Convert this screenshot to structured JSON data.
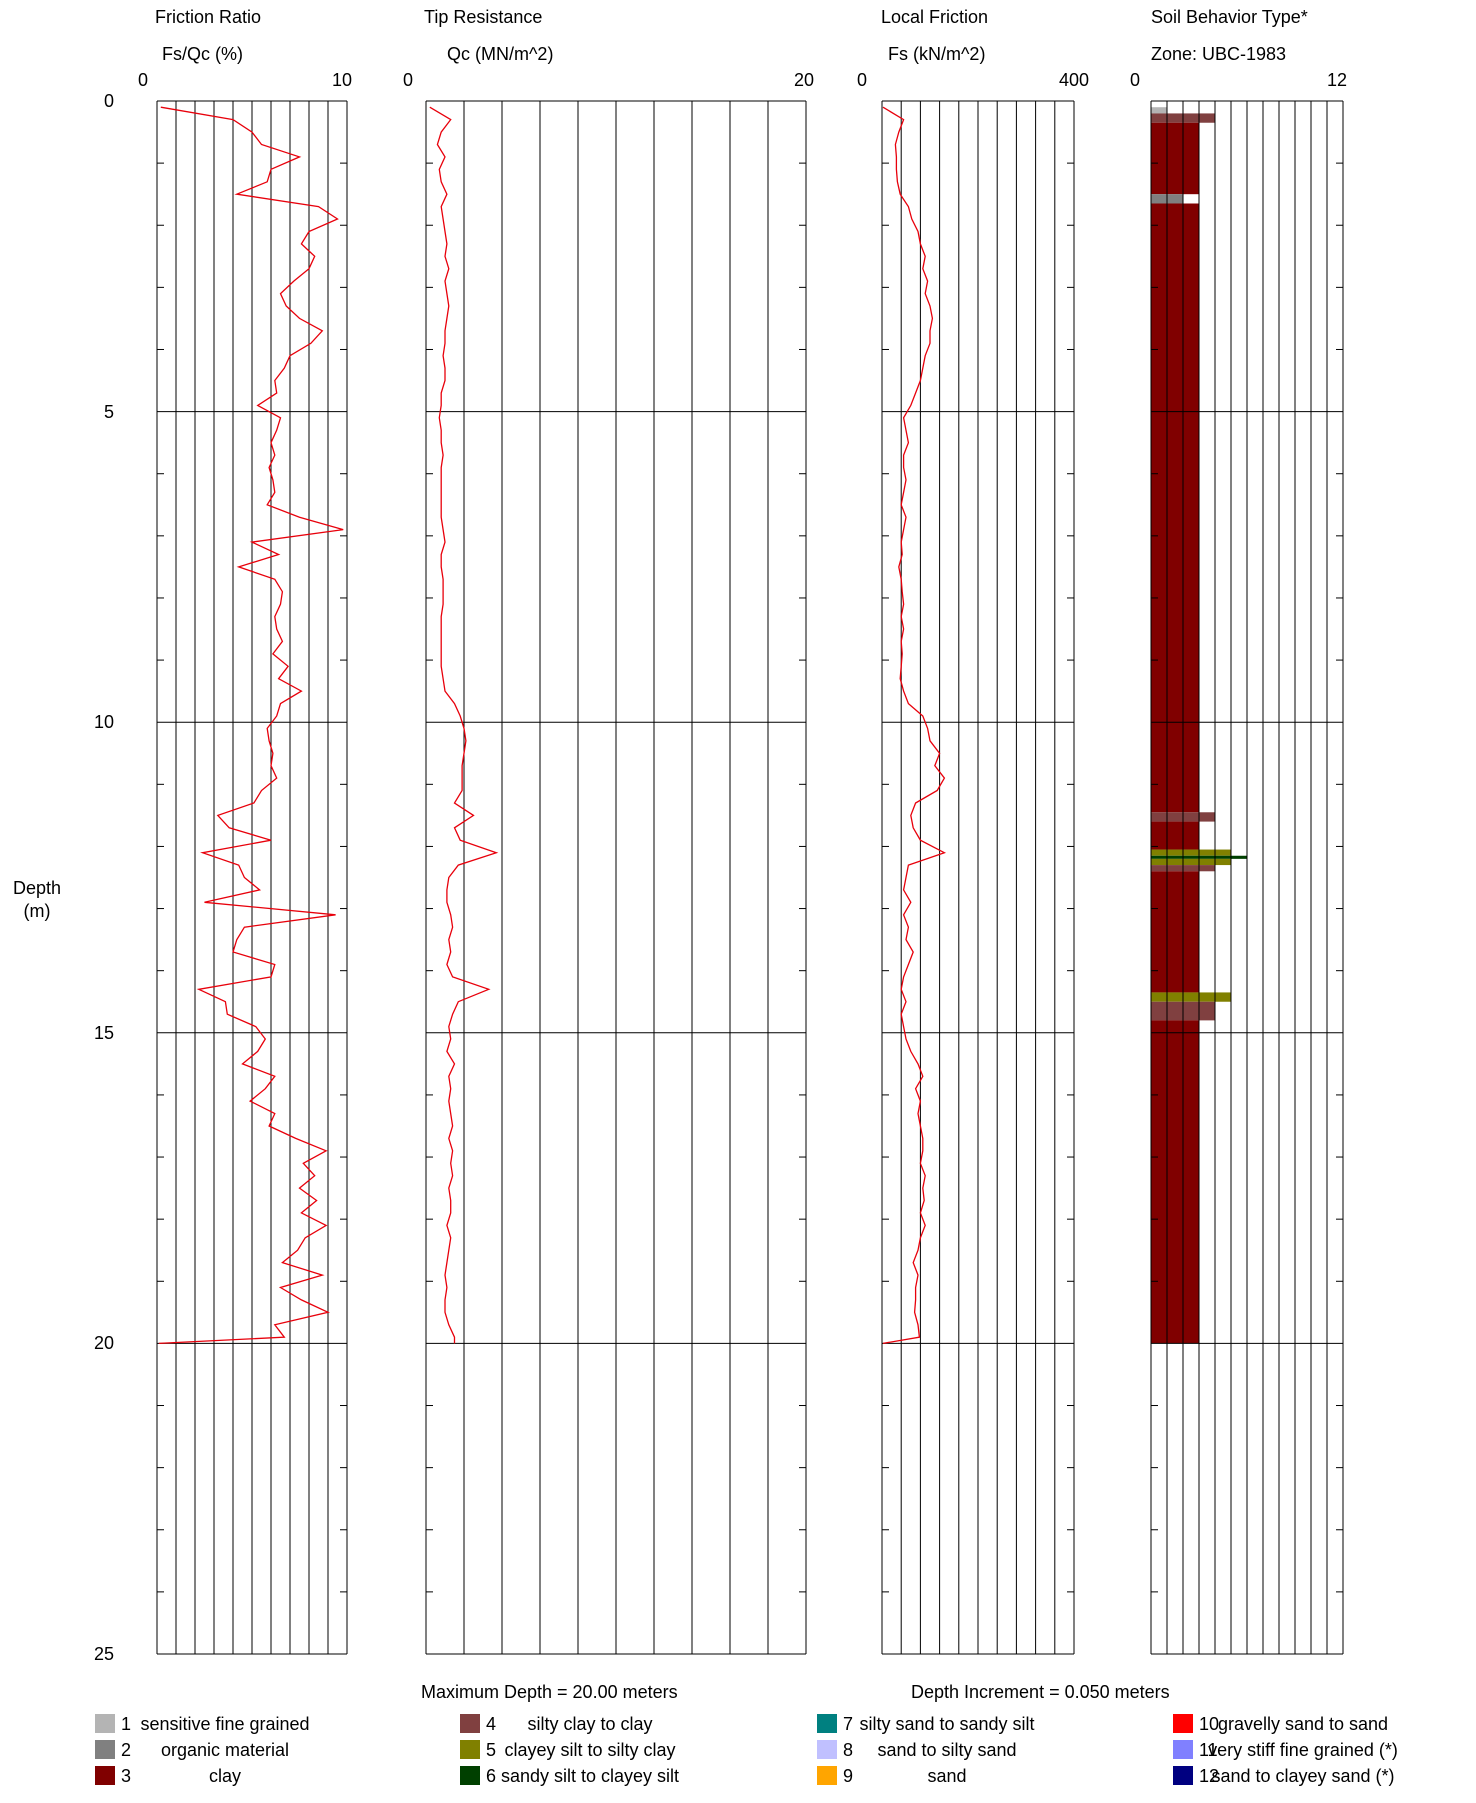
{
  "depth_axis": {
    "label_line1": "Depth",
    "label_line2": "(m)",
    "ticks": [
      "0",
      "5",
      "10",
      "15",
      "20",
      "25"
    ],
    "range": [
      0,
      25
    ]
  },
  "footer": {
    "max_depth": "Maximum Depth = 20.00 meters",
    "depth_increment": "Depth Increment = 0.050 meters"
  },
  "colors": {
    "trace": "#e8000b",
    "grid": "#000000",
    "zone_1": "#b4b4b4",
    "zone_2": "#808080",
    "zone_3": "#800000",
    "zone_4": "#804040",
    "zone_5": "#808000",
    "zone_6": "#004000",
    "zone_7": "#008080",
    "zone_8": "#c0c0ff",
    "zone_9": "#ffa500",
    "zone_10": "#ff0000",
    "zone_11": "#8080ff",
    "zone_12": "#000080"
  },
  "legend": [
    {
      "num": "1",
      "label": "sensitive fine grained",
      "color": "#b4b4b4"
    },
    {
      "num": "2",
      "label": "organic material",
      "color": "#808080"
    },
    {
      "num": "3",
      "label": "clay",
      "color": "#800000"
    },
    {
      "num": "4",
      "label": "silty clay to clay",
      "color": "#804040"
    },
    {
      "num": "5",
      "label": "clayey silt to silty clay",
      "color": "#808000"
    },
    {
      "num": "6",
      "label": "sandy silt to clayey silt",
      "color": "#004000"
    },
    {
      "num": "7",
      "label": "silty sand to sandy silt",
      "color": "#008080"
    },
    {
      "num": "8",
      "label": "sand to silty sand",
      "color": "#c0c0ff"
    },
    {
      "num": "9",
      "label": "sand",
      "color": "#ffa500"
    },
    {
      "num": "10",
      "label": "gravelly sand to sand",
      "color": "#ff0000"
    },
    {
      "num": "11",
      "label": "very stiff fine grained (*)",
      "color": "#8080ff"
    },
    {
      "num": "12",
      "label": "sand to clayey sand (*)",
      "color": "#000080"
    }
  ],
  "chart_data": [
    {
      "type": "line",
      "title": "Friction Ratio",
      "xlabel": "Fs/Qc (%)",
      "xlim": [
        0,
        10
      ],
      "x_tick_labels": [
        "0",
        "10"
      ],
      "ylim": [
        0,
        25
      ],
      "y_inverted": true,
      "grid": true,
      "series": [
        {
          "depth": [
            0.1,
            0.3,
            0.5,
            0.7,
            0.9,
            1.1,
            1.3,
            1.5,
            1.7,
            1.9,
            2.1,
            2.3,
            2.5,
            2.7,
            2.9,
            3.1,
            3.3,
            3.5,
            3.7,
            3.9,
            4.1,
            4.3,
            4.5,
            4.7,
            4.9,
            5.1,
            5.3,
            5.5,
            5.7,
            5.9,
            6.1,
            6.3,
            6.5,
            6.7,
            6.9,
            7.1,
            7.3,
            7.5,
            7.7,
            7.9,
            8.1,
            8.3,
            8.5,
            8.7,
            8.9,
            9.1,
            9.3,
            9.5,
            9.7,
            9.9,
            10.1,
            10.3,
            10.5,
            10.7,
            10.9,
            11.1,
            11.3,
            11.5,
            11.7,
            11.9,
            12.1,
            12.3,
            12.5,
            12.7,
            12.9,
            13.1,
            13.3,
            13.5,
            13.7,
            13.9,
            14.1,
            14.3,
            14.5,
            14.7,
            14.9,
            15.1,
            15.3,
            15.5,
            15.7,
            15.9,
            16.1,
            16.3,
            16.5,
            16.7,
            16.9,
            17.1,
            17.3,
            17.5,
            17.7,
            17.9,
            18.1,
            18.3,
            18.5,
            18.7,
            18.9,
            19.1,
            19.3,
            19.5,
            19.7,
            19.9,
            20.0
          ],
          "values": [
            0.2,
            4.0,
            5.0,
            5.5,
            7.5,
            6.0,
            5.8,
            4.2,
            8.5,
            9.5,
            8.0,
            7.6,
            8.3,
            8.0,
            7.2,
            6.5,
            6.8,
            7.5,
            8.7,
            8.1,
            7.0,
            6.7,
            6.2,
            6.3,
            5.3,
            6.5,
            6.3,
            6.0,
            6.2,
            5.9,
            6.1,
            6.2,
            5.8,
            7.5,
            9.8,
            5.0,
            6.4,
            4.3,
            6.2,
            6.6,
            6.5,
            6.2,
            6.3,
            6.6,
            6.1,
            6.9,
            6.4,
            7.6,
            6.5,
            6.3,
            5.8,
            5.9,
            6.1,
            6.0,
            6.3,
            5.5,
            5.1,
            3.2,
            3.8,
            6.0,
            2.4,
            4.3,
            4.6,
            5.4,
            2.5,
            9.4,
            4.6,
            4.2,
            4.0,
            6.2,
            6.0,
            2.2,
            3.6,
            3.7,
            5.2,
            5.7,
            5.3,
            4.5,
            6.2,
            5.7,
            4.9,
            6.2,
            5.9,
            7.3,
            8.9,
            7.7,
            8.3,
            7.5,
            8.4,
            7.6,
            8.9,
            7.8,
            7.4,
            6.6,
            8.7,
            6.5,
            7.6,
            9.0,
            6.2,
            6.7,
            0.1
          ]
        }
      ]
    },
    {
      "type": "line",
      "title": "Tip Resistance",
      "xlabel": "Qc (MN/m^2)",
      "xlim": [
        0,
        20
      ],
      "x_tick_labels": [
        "0",
        "20"
      ],
      "ylim": [
        0,
        25
      ],
      "y_inverted": true,
      "grid": true,
      "series": [
        {
          "depth": [
            0.1,
            0.3,
            0.5,
            0.7,
            0.9,
            1.1,
            1.3,
            1.5,
            1.7,
            1.9,
            2.1,
            2.3,
            2.5,
            2.7,
            2.9,
            3.1,
            3.3,
            3.5,
            3.7,
            3.9,
            4.1,
            4.3,
            4.5,
            4.7,
            4.9,
            5.1,
            5.3,
            5.5,
            5.7,
            5.9,
            6.1,
            6.3,
            6.5,
            6.7,
            6.9,
            7.1,
            7.3,
            7.5,
            7.7,
            7.9,
            8.1,
            8.3,
            8.5,
            8.7,
            8.9,
            9.1,
            9.3,
            9.5,
            9.7,
            9.9,
            10.1,
            10.3,
            10.5,
            10.7,
            10.9,
            11.1,
            11.3,
            11.5,
            11.7,
            11.9,
            12.1,
            12.3,
            12.5,
            12.7,
            12.9,
            13.1,
            13.3,
            13.5,
            13.7,
            13.9,
            14.1,
            14.3,
            14.5,
            14.7,
            14.9,
            15.1,
            15.3,
            15.5,
            15.7,
            15.9,
            16.1,
            16.3,
            16.5,
            16.7,
            16.9,
            17.1,
            17.3,
            17.5,
            17.7,
            17.9,
            18.1,
            18.3,
            18.5,
            18.7,
            18.9,
            19.1,
            19.3,
            19.5,
            19.7,
            19.9,
            20.0
          ],
          "values": [
            0.2,
            1.3,
            0.8,
            0.6,
            1.0,
            0.7,
            0.8,
            1.1,
            0.8,
            0.9,
            1.0,
            1.1,
            1.0,
            1.2,
            1.0,
            1.1,
            1.2,
            1.1,
            1.0,
            1.0,
            0.9,
            1.0,
            1.0,
            0.8,
            0.8,
            0.7,
            0.8,
            0.8,
            0.9,
            0.8,
            0.8,
            0.8,
            0.8,
            0.8,
            0.9,
            1.0,
            0.8,
            0.8,
            0.9,
            0.9,
            0.9,
            0.8,
            0.8,
            0.8,
            0.8,
            0.8,
            0.9,
            1.0,
            1.5,
            1.8,
            2.0,
            2.1,
            2.0,
            1.9,
            1.9,
            1.9,
            1.5,
            2.5,
            1.5,
            1.8,
            3.7,
            1.7,
            1.2,
            1.1,
            1.1,
            1.3,
            1.4,
            1.2,
            1.3,
            1.1,
            1.4,
            3.3,
            1.7,
            1.4,
            1.2,
            1.3,
            1.1,
            1.5,
            1.2,
            1.3,
            1.2,
            1.3,
            1.4,
            1.2,
            1.4,
            1.3,
            1.4,
            1.2,
            1.3,
            1.3,
            1.1,
            1.3,
            1.2,
            1.1,
            1.0,
            1.1,
            1.0,
            1.0,
            1.2,
            1.5,
            1.5
          ]
        }
      ]
    },
    {
      "type": "line",
      "title": "Local Friction",
      "xlabel": "Fs (kN/m^2)",
      "xlim": [
        0,
        400
      ],
      "x_tick_labels": [
        "0",
        "400"
      ],
      "ylim": [
        0,
        25
      ],
      "y_inverted": true,
      "grid": true,
      "series": [
        {
          "depth": [
            0.1,
            0.3,
            0.5,
            0.7,
            0.9,
            1.1,
            1.3,
            1.5,
            1.7,
            1.9,
            2.1,
            2.3,
            2.5,
            2.7,
            2.9,
            3.1,
            3.3,
            3.5,
            3.7,
            3.9,
            4.1,
            4.3,
            4.5,
            4.7,
            4.9,
            5.1,
            5.3,
            5.5,
            5.7,
            5.9,
            6.1,
            6.3,
            6.5,
            6.7,
            6.9,
            7.1,
            7.3,
            7.5,
            7.7,
            7.9,
            8.1,
            8.3,
            8.5,
            8.7,
            8.9,
            9.1,
            9.3,
            9.5,
            9.7,
            9.9,
            10.1,
            10.3,
            10.5,
            10.7,
            10.9,
            11.1,
            11.3,
            11.5,
            11.7,
            11.9,
            12.1,
            12.3,
            12.5,
            12.7,
            12.9,
            13.1,
            13.3,
            13.5,
            13.7,
            13.9,
            14.1,
            14.3,
            14.5,
            14.7,
            14.9,
            15.1,
            15.3,
            15.5,
            15.7,
            15.9,
            16.1,
            16.3,
            16.5,
            16.7,
            16.9,
            17.1,
            17.3,
            17.5,
            17.7,
            17.9,
            18.1,
            18.3,
            18.5,
            18.7,
            18.9,
            19.1,
            19.3,
            19.5,
            19.7,
            19.9,
            20.0
          ],
          "values": [
            2,
            45,
            35,
            28,
            30,
            30,
            32,
            38,
            55,
            62,
            75,
            80,
            90,
            85,
            95,
            90,
            100,
            105,
            100,
            100,
            90,
            85,
            80,
            70,
            60,
            45,
            50,
            55,
            45,
            45,
            50,
            45,
            40,
            50,
            45,
            40,
            42,
            35,
            40,
            42,
            45,
            40,
            45,
            40,
            42,
            40,
            38,
            45,
            55,
            85,
            95,
            100,
            120,
            110,
            130,
            115,
            70,
            60,
            65,
            80,
            130,
            55,
            50,
            45,
            60,
            45,
            55,
            50,
            65,
            55,
            45,
            40,
            50,
            40,
            45,
            50,
            60,
            75,
            85,
            70,
            80,
            75,
            80,
            85,
            85,
            80,
            90,
            85,
            88,
            80,
            90,
            80,
            75,
            65,
            75,
            70,
            70,
            68,
            75,
            78,
            2
          ]
        }
      ]
    },
    {
      "type": "bar",
      "orientation": "horizontal",
      "title": "Soil Behavior Type*",
      "xlabel": "Zone: UBC-1983",
      "xlim": [
        0,
        12
      ],
      "x_tick_labels": [
        "0",
        "12"
      ],
      "ylim": [
        0,
        25
      ],
      "y_inverted": true,
      "grid": true,
      "segments": [
        {
          "top": 0.1,
          "bottom": 0.2,
          "zone": 1
        },
        {
          "top": 0.2,
          "bottom": 0.35,
          "zone": 4
        },
        {
          "top": 0.35,
          "bottom": 1.5,
          "zone": 3
        },
        {
          "top": 1.5,
          "bottom": 1.65,
          "zone": 2
        },
        {
          "top": 1.65,
          "bottom": 11.45,
          "zone": 3
        },
        {
          "top": 11.45,
          "bottom": 11.6,
          "zone": 4
        },
        {
          "top": 11.6,
          "bottom": 12.05,
          "zone": 3
        },
        {
          "top": 12.05,
          "bottom": 12.15,
          "zone": 5
        },
        {
          "top": 12.15,
          "bottom": 12.2,
          "zone": 6
        },
        {
          "top": 12.2,
          "bottom": 12.3,
          "zone": 5
        },
        {
          "top": 12.3,
          "bottom": 12.4,
          "zone": 4
        },
        {
          "top": 12.4,
          "bottom": 14.35,
          "zone": 3
        },
        {
          "top": 14.35,
          "bottom": 14.5,
          "zone": 5
        },
        {
          "top": 14.5,
          "bottom": 14.8,
          "zone": 4
        },
        {
          "top": 14.8,
          "bottom": 20.0,
          "zone": 3
        }
      ]
    }
  ]
}
